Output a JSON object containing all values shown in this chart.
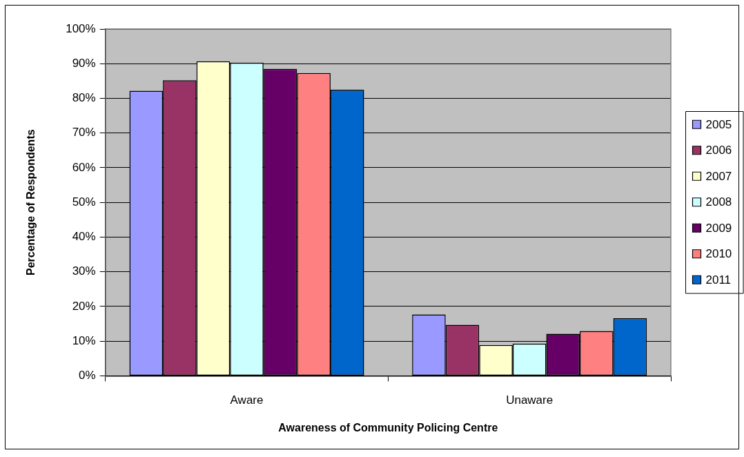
{
  "chart_data": {
    "type": "bar",
    "xlabel": "Awareness of Community Policing Centre",
    "ylabel": "Percentage of Respondents",
    "categories": [
      "Aware",
      "Unaware"
    ],
    "series": [
      {
        "name": "2005",
        "color": "#9999ff",
        "values": [
          82.2,
          17.7
        ]
      },
      {
        "name": "2006",
        "color": "#993366",
        "values": [
          85.2,
          14.7
        ]
      },
      {
        "name": "2007",
        "color": "#ffffcc",
        "values": [
          90.7,
          8.9
        ]
      },
      {
        "name": "2008",
        "color": "#ccffff",
        "values": [
          90.3,
          9.3
        ]
      },
      {
        "name": "2009",
        "color": "#660066",
        "values": [
          88.5,
          12.1
        ]
      },
      {
        "name": "2010",
        "color": "#ff8080",
        "values": [
          87.3,
          12.9
        ]
      },
      {
        "name": "2011",
        "color": "#0066cc",
        "values": [
          82.5,
          16.6
        ]
      }
    ],
    "ylim": [
      0,
      100
    ],
    "yticks": [
      {
        "value": 0,
        "label": "0%"
      },
      {
        "value": 10,
        "label": "10%"
      },
      {
        "value": 20,
        "label": "20%"
      },
      {
        "value": 30,
        "label": "30%"
      },
      {
        "value": 40,
        "label": "40%"
      },
      {
        "value": 50,
        "label": "50%"
      },
      {
        "value": 60,
        "label": "60%"
      },
      {
        "value": 70,
        "label": "70%"
      },
      {
        "value": 80,
        "label": "80%"
      },
      {
        "value": 90,
        "label": "90%"
      },
      {
        "value": 100,
        "label": "100%"
      }
    ],
    "grid": "y",
    "legend": "right"
  }
}
